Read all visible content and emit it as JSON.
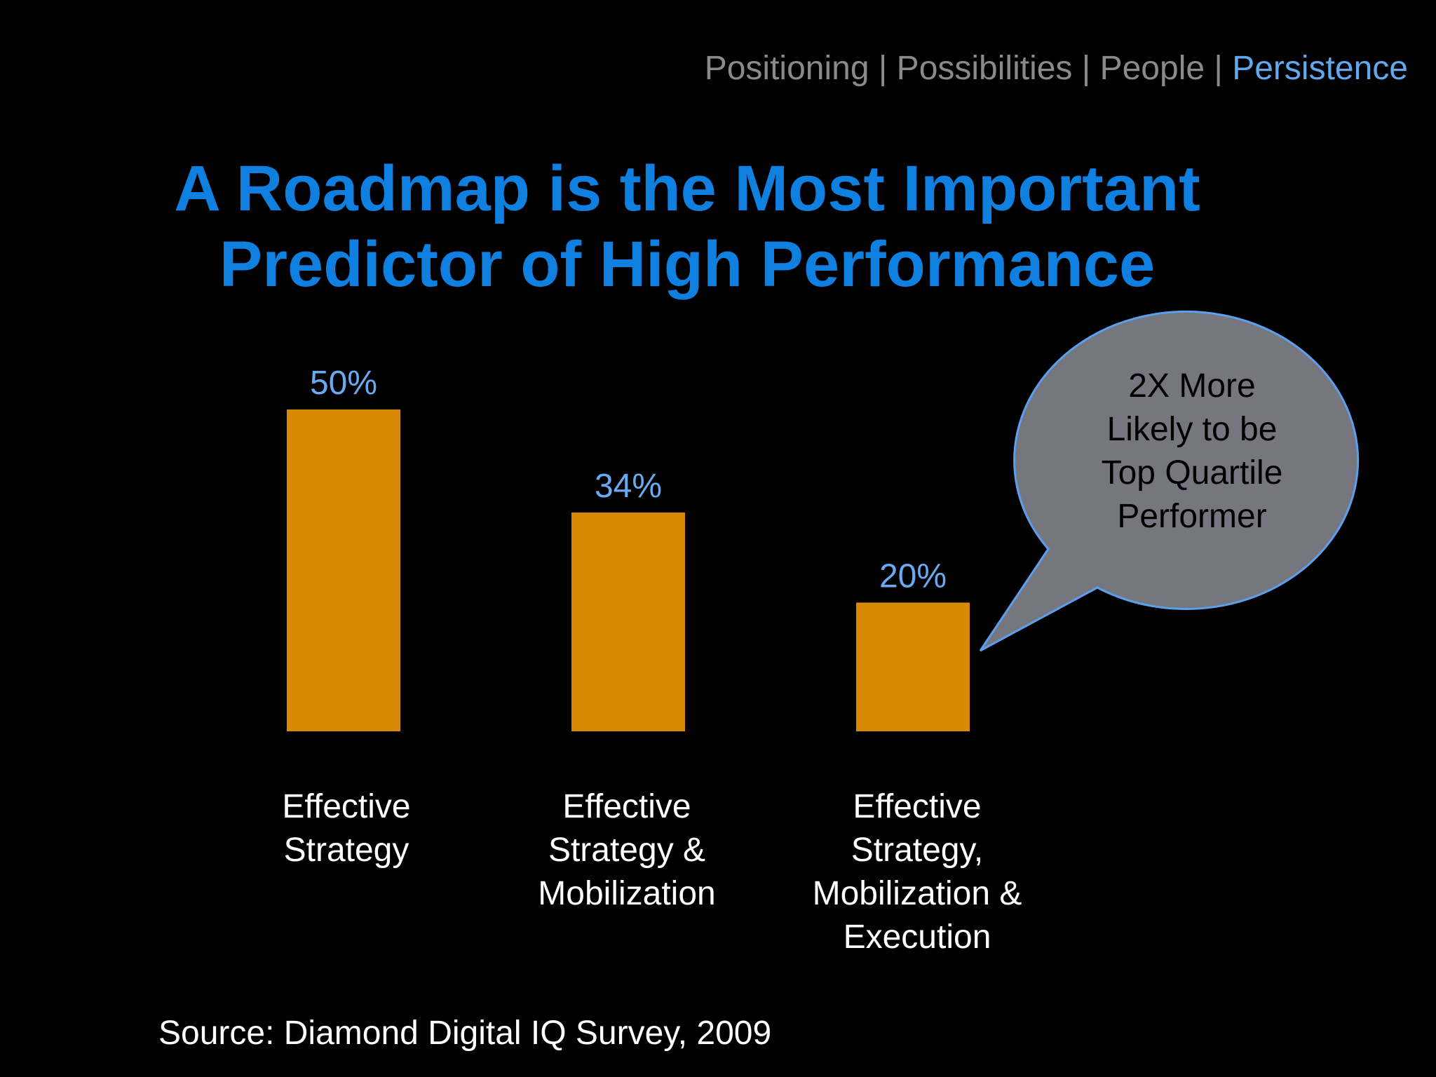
{
  "nav": {
    "items": [
      "Positioning",
      "Possibilities",
      "People",
      "Persistence"
    ],
    "active": "Persistence",
    "separator": "|"
  },
  "title": {
    "line1": "A Roadmap is the Most Important",
    "line2": "Predictor of High Performance"
  },
  "callout": {
    "lines": [
      "2X More",
      "Likely to be",
      "Top Quartile",
      "Performer"
    ]
  },
  "source": "Source: Diamond Digital IQ Survey, 2009",
  "colors": {
    "background": "#000000",
    "title": "#0f80e0",
    "nav_inactive": "#8a8a8a",
    "nav_active": "#62a8ef",
    "bar": "#d88a07",
    "value_label": "#6aaaf0",
    "callout_fill": "#76767e",
    "callout_stroke": "#5aa0ee"
  },
  "chart_data": {
    "type": "bar",
    "categories": [
      [
        "Effective",
        "Strategy"
      ],
      [
        "Effective",
        "Strategy &",
        "Mobilization"
      ],
      [
        "Effective",
        "Strategy,",
        "Mobilization &",
        "Execution"
      ]
    ],
    "values": [
      50,
      34,
      20
    ],
    "value_labels": [
      "50%",
      "34%",
      "20%"
    ],
    "unit": "%",
    "ylim": [
      0,
      50
    ],
    "grid": false,
    "axes_visible": false
  }
}
